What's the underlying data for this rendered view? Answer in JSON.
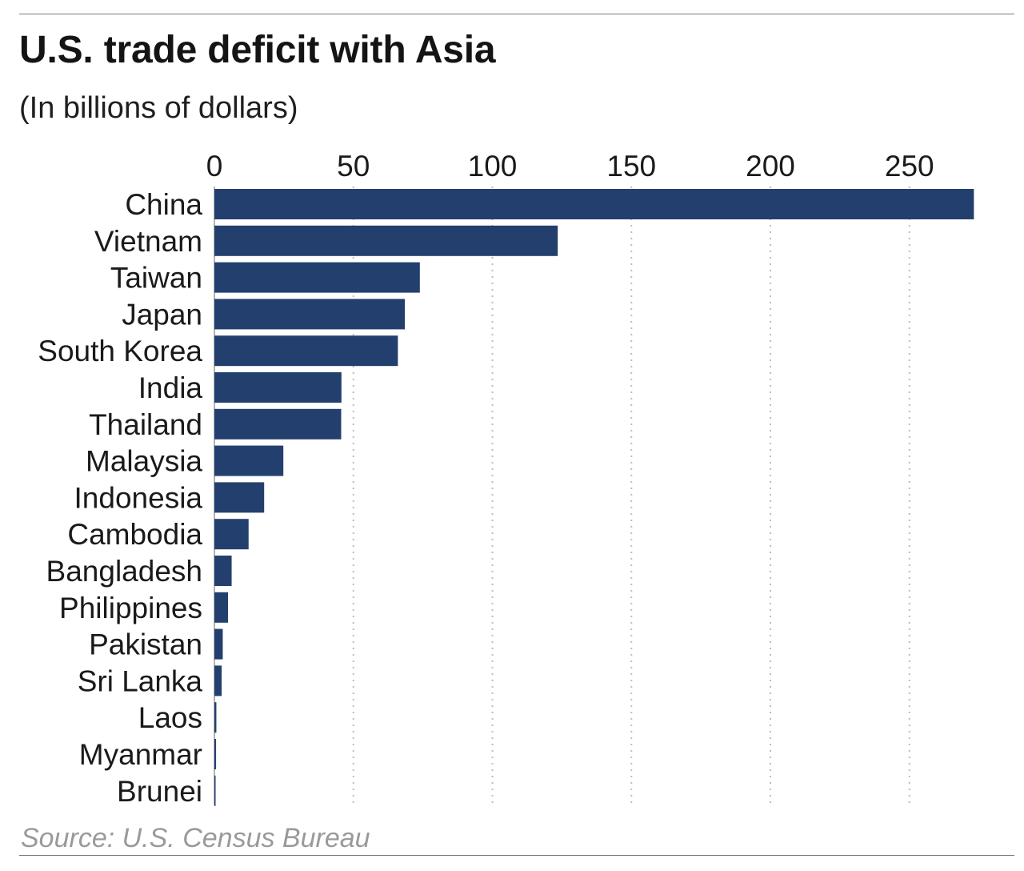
{
  "header": {
    "title": "U.S. trade deficit with Asia",
    "subtitle": "(In billions of dollars)"
  },
  "footer": {
    "source": "Source: U.S. Census Bureau"
  },
  "colors": {
    "bar": "#233f6e",
    "grid": "#bdbdbd",
    "text": "#1a1a1a",
    "source": "#9a9a9a"
  },
  "chart_data": {
    "type": "bar",
    "orientation": "horizontal",
    "title": "U.S. trade deficit with Asia",
    "subtitle": "(In billions of dollars)",
    "xlabel": "",
    "ylabel": "",
    "xlim": [
      0,
      275
    ],
    "x_ticks": [
      0,
      50,
      100,
      150,
      200,
      250
    ],
    "x_tick_labels": [
      "0",
      "50",
      "100",
      "150",
      "200",
      "250"
    ],
    "x_axis_position": "top",
    "grid": "vertical dotted",
    "legend": "none",
    "categories": [
      "China",
      "Vietnam",
      "Taiwan",
      "Japan",
      "South Korea",
      "India",
      "Thailand",
      "Malaysia",
      "Indonesia",
      "Cambodia",
      "Bangladesh",
      "Philippines",
      "Pakistan",
      "Sri Lanka",
      "Laos",
      "Myanmar",
      "Brunei"
    ],
    "values": [
      273.2,
      123.5,
      73.9,
      68.5,
      66.0,
      45.7,
      45.6,
      24.8,
      17.9,
      12.3,
      6.2,
      4.9,
      3.0,
      2.6,
      0.7,
      0.6,
      0.1
    ],
    "source": "Source: U.S. Census Bureau"
  }
}
